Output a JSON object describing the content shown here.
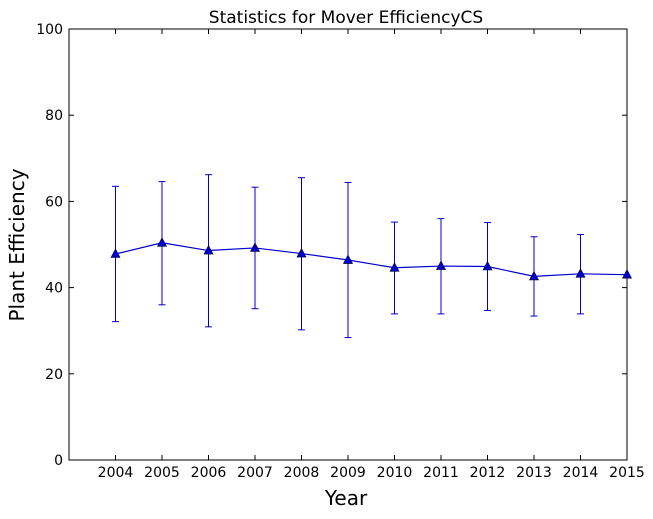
{
  "chart_data": {
    "type": "line",
    "title": "Statistics for Mover EfficiencyCS",
    "xlabel": "Year",
    "ylabel": "Plant Efficiency",
    "xlim": [
      2003,
      2015
    ],
    "ylim": [
      0,
      100
    ],
    "x_ticks": [
      "2004",
      "2005",
      "2006",
      "2007",
      "2008",
      "2009",
      "2010",
      "2011",
      "2012",
      "2013",
      "2014",
      "2015"
    ],
    "y_ticks": [
      "0",
      "20",
      "40",
      "60",
      "80",
      "100"
    ],
    "grid": false,
    "series": [
      {
        "color": "#0000cc",
        "marker": "triangle",
        "x": [
          2004,
          2005,
          2006,
          2007,
          2008,
          2009,
          2010,
          2011,
          2012,
          2013,
          2014,
          2015
        ],
        "y": [
          47.8,
          50.4,
          48.6,
          49.2,
          47.9,
          46.4,
          44.6,
          45.0,
          44.9,
          42.6,
          43.2,
          43.0
        ],
        "err_low": [
          32.1,
          36.0,
          30.9,
          35.1,
          30.2,
          28.4,
          33.9,
          33.9,
          34.7,
          33.4,
          33.9,
          null
        ],
        "err_high": [
          63.5,
          64.6,
          66.2,
          63.3,
          65.5,
          64.4,
          55.2,
          56.0,
          55.1,
          51.8,
          52.3,
          null
        ]
      }
    ]
  }
}
